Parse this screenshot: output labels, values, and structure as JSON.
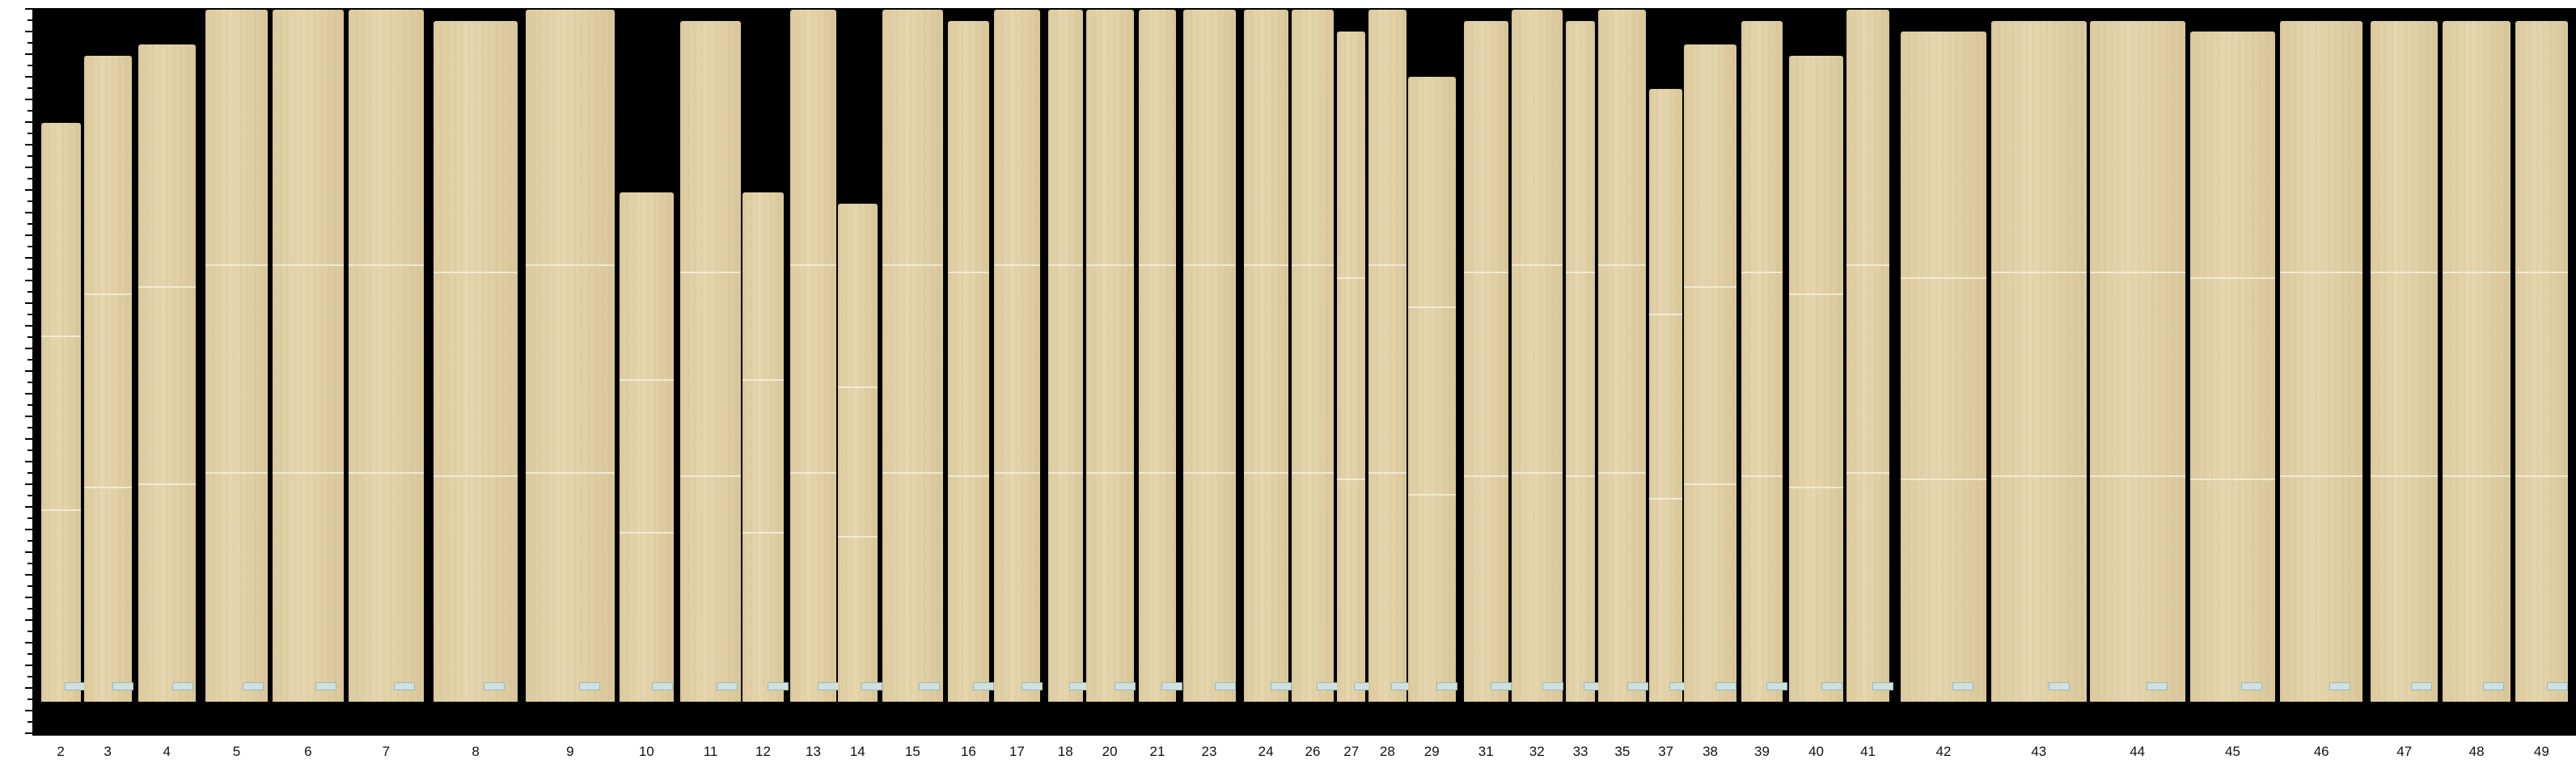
{
  "strips": [
    "2",
    "3",
    "4",
    "5",
    "6",
    "7",
    "8",
    "9",
    "10",
    "11",
    "12",
    "13",
    "14",
    "15",
    "16",
    "17",
    "18",
    "20",
    "21",
    "23",
    "24",
    "26",
    "27",
    "28",
    "29",
    "31",
    "32",
    "33",
    "35",
    "37",
    "38",
    "39",
    "40",
    "41",
    "42",
    "43",
    "44",
    "45",
    "46",
    "47",
    "48",
    "49"
  ],
  "colors": {
    "background": "#000000",
    "veneer": "#e3d3a9",
    "tag": "#cfe0df"
  }
}
